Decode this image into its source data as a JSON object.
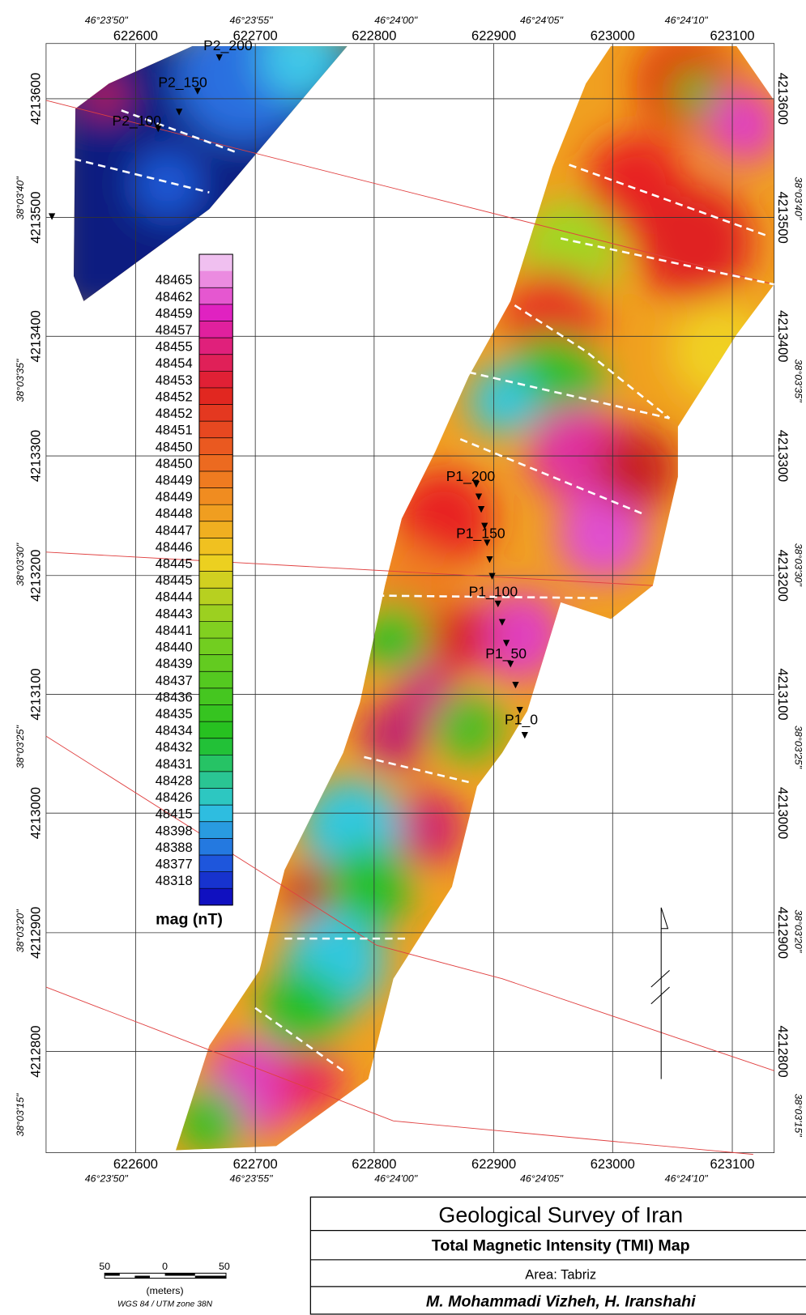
{
  "map": {
    "easting_labels": [
      "622600",
      "622700",
      "622800",
      "622900",
      "623000",
      "623100"
    ],
    "northing_labels": [
      "4213600",
      "4213500",
      "4213400",
      "4213300",
      "4213200",
      "4213100",
      "4213000",
      "4212900",
      "4212800"
    ],
    "longitude_labels": [
      "46°23'50\"",
      "46°23'55\"",
      "46°24'00\"",
      "46°24'05\"",
      "46°24'10\""
    ],
    "latitude_labels": [
      "38°03'40\"",
      "38°03'35\"",
      "38°03'30\"",
      "38°03'25\"",
      "38°03'20\"",
      "38°03'15\""
    ],
    "profile_labels": [
      "P2_200",
      "P2_150",
      "P2_100",
      "P1_200",
      "P1_150",
      "P1_100",
      "P1_50",
      "P1_0"
    ]
  },
  "legend": {
    "values": [
      "48465",
      "48462",
      "48459",
      "48457",
      "48455",
      "48454",
      "48453",
      "48452",
      "48452",
      "48451",
      "48450",
      "48450",
      "48449",
      "48449",
      "48448",
      "48447",
      "48446",
      "48445",
      "48445",
      "48444",
      "48443",
      "48441",
      "48440",
      "48439",
      "48437",
      "48436",
      "48435",
      "48434",
      "48432",
      "48431",
      "48428",
      "48426",
      "48415",
      "48398",
      "48388",
      "48377",
      "48318"
    ],
    "unit": "mag (nT)"
  },
  "title_block": {
    "organization": "Geological Survey of Iran",
    "title": "Total Magnetic Intensity (TMI) Map",
    "area": "Area: Tabriz",
    "authors": "M. Mohammadi Vizheh, H. Iranshahi"
  },
  "scale_bar": {
    "labels": [
      "50",
      "0",
      "50"
    ],
    "unit": "(meters)",
    "projection": "WGS 84 / UTM zone 38N"
  }
}
